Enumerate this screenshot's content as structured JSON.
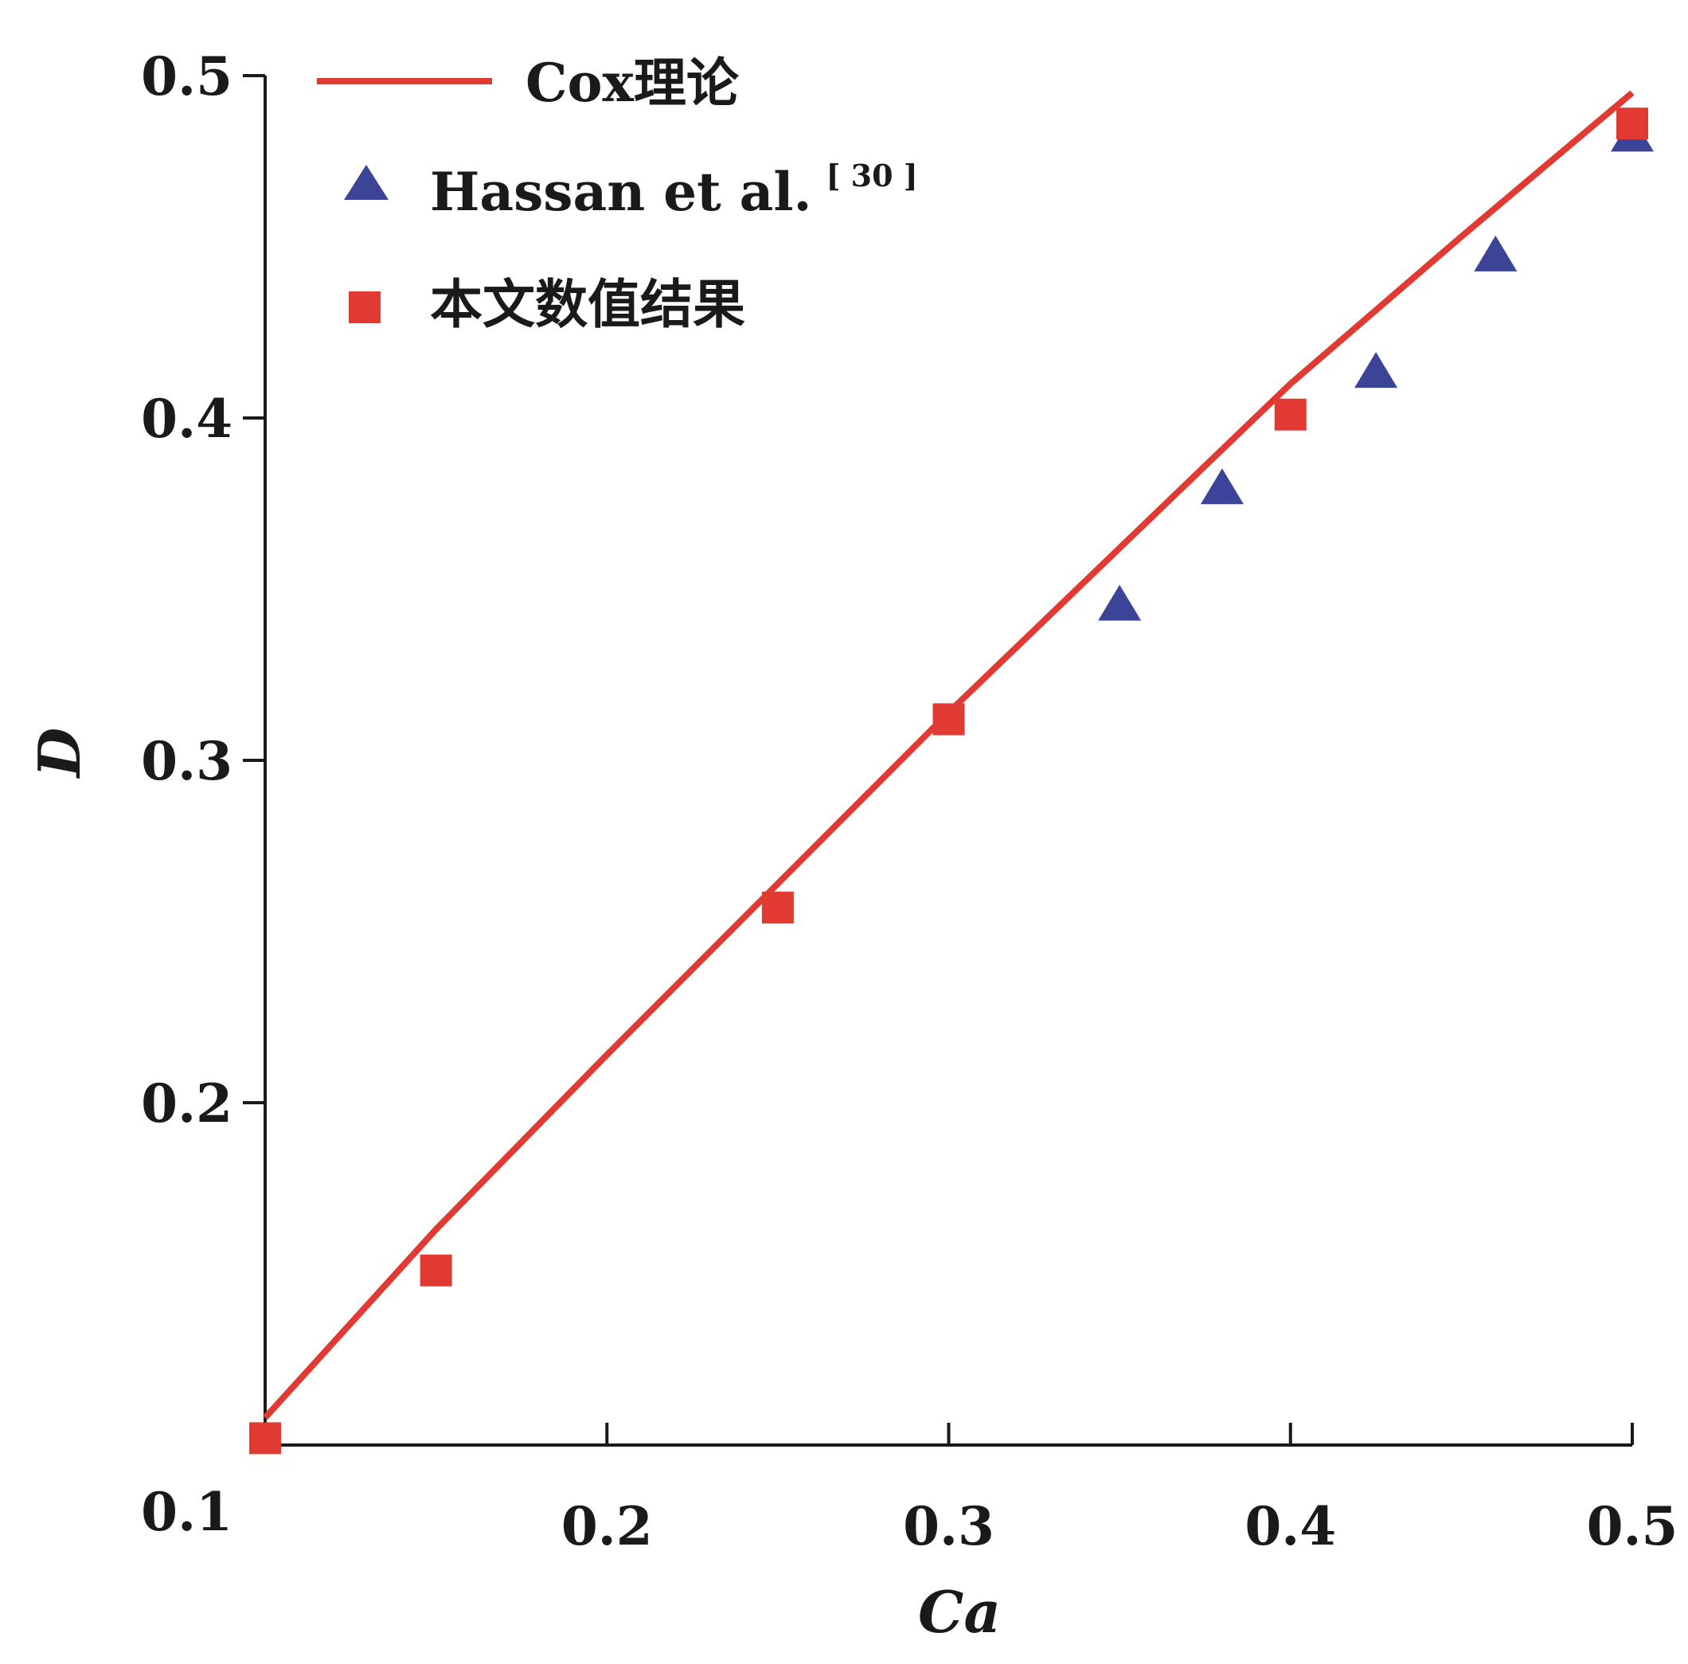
{
  "chart_data": {
    "type": "scatter",
    "title": "",
    "xlabel": "Ca",
    "ylabel": "D",
    "xlim": [
      0.1,
      0.5
    ],
    "ylim": [
      0.1,
      0.5
    ],
    "x_ticks": [
      0.2,
      0.3,
      0.4,
      0.5
    ],
    "y_ticks": [
      0.2,
      0.3,
      0.4,
      0.5
    ],
    "x_tick_labels": [
      "0.2",
      "0.3",
      "0.4",
      "0.5"
    ],
    "y_tick_labels": [
      "0.2",
      "0.3",
      "0.4",
      "0.5"
    ],
    "origin_label": "0.1",
    "grid": false,
    "legend_position": "top-left",
    "series": [
      {
        "name": "Cox理论",
        "marker": "line",
        "color": "#e03a32",
        "x": [
          0.1,
          0.15,
          0.2,
          0.25,
          0.3,
          0.35,
          0.4,
          0.45,
          0.5
        ],
        "y": [
          0.108,
          0.163,
          0.214,
          0.264,
          0.314,
          0.362,
          0.41,
          0.453,
          0.495
        ]
      },
      {
        "name": "Hassan et al.",
        "name_superscript": "[ 30 ]",
        "marker": "triangle",
        "color": "#3c4498",
        "x": [
          0.35,
          0.38,
          0.425,
          0.46,
          0.5
        ],
        "y": [
          0.345,
          0.379,
          0.413,
          0.447,
          0.482
        ]
      },
      {
        "name": "本文数值结果",
        "marker": "square",
        "color": "#e03a32",
        "x": [
          0.1,
          0.15,
          0.25,
          0.3,
          0.4,
          0.5
        ],
        "y": [
          0.102,
          0.151,
          0.257,
          0.312,
          0.401,
          0.486
        ]
      }
    ]
  }
}
